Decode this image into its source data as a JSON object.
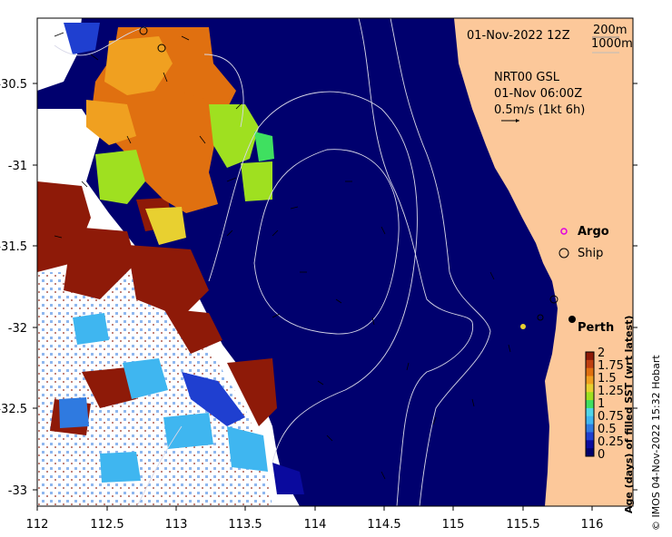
{
  "header": {
    "date_label": "01-Nov-2022 12Z",
    "depth_contour_1": "200m",
    "depth_contour_2": "1000m"
  },
  "current_info": {
    "line1": "NRT00 GSL",
    "line2": "01-Nov 06:00Z",
    "line3": "0.5m/s (1kt 6h)"
  },
  "legend": {
    "argo": "Argo",
    "ship": "Ship"
  },
  "places": {
    "perth": "Perth"
  },
  "axes": {
    "x_ticks": [
      "112",
      "112.5",
      "113",
      "113.5",
      "114",
      "114.5",
      "115",
      "115.5",
      "116"
    ],
    "y_ticks": [
      "-30.5",
      "-31",
      "-31.5",
      "-32",
      "-32.5",
      "-33"
    ],
    "x_range": [
      112,
      116.2
    ],
    "y_range": [
      -33.1,
      -30.0
    ]
  },
  "colorbar": {
    "title": "Age (days) of filled SST (wrt latest)",
    "ticks": [
      "2",
      "1.75",
      "1.5",
      "1.25",
      "1",
      "0.75",
      "0.5",
      "0.25",
      "0"
    ],
    "colors": [
      "#00006e",
      "#0a0a9e",
      "#1f3fd0",
      "#2f7ae0",
      "#3fb6f0",
      "#4fd6e8",
      "#3fe060",
      "#9fe020",
      "#e8d030",
      "#f0a020",
      "#e07010",
      "#c04010",
      "#8e1a08"
    ]
  },
  "credit": "© IMOS 04-Nov-2022 15:32 Hobart"
}
